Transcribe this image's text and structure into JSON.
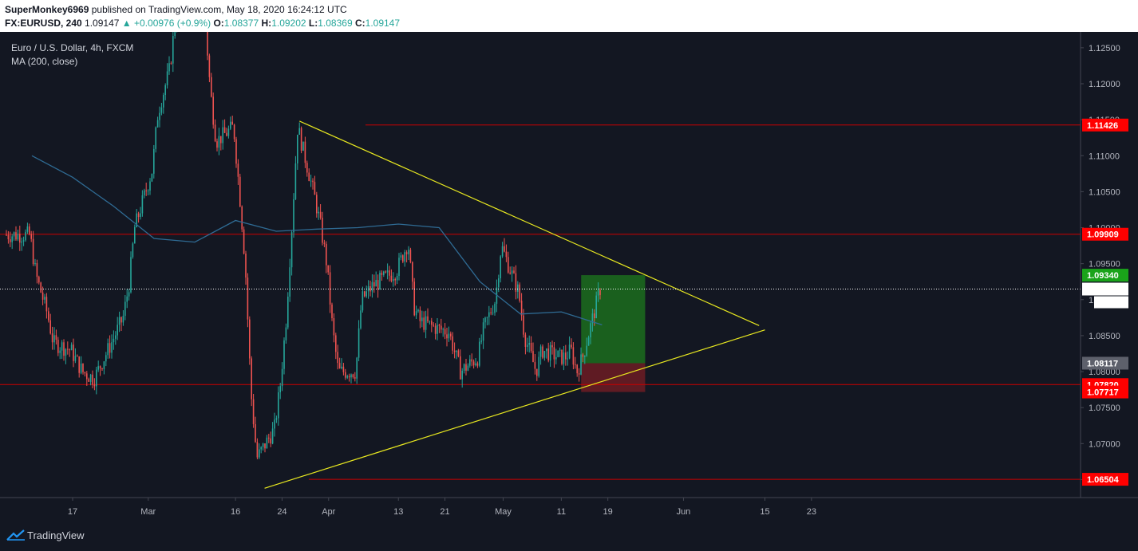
{
  "header": {
    "publisher": "SuperMonkey6969",
    "published_text": "published on TradingView.com, May 18, 2020 16:24:12 UTC",
    "symbol": "FX:EURUSD, 240",
    "price": "1.09147",
    "change": "+0.00976 (+0.9%)",
    "o_label": "O:",
    "o_value": "1.08377",
    "h_label": "H:",
    "h_value": "1.09202",
    "l_label": "L:",
    "l_value": "1.08369",
    "c_label": "C:",
    "c_value": "1.09147"
  },
  "legend": {
    "title": "Euro / U.S. Dollar, 4h, FXCM",
    "indicator": "MA (200, close)"
  },
  "footer": {
    "brand": "TradingView"
  },
  "colors": {
    "background": "#131722",
    "up": "#26a69a",
    "down": "#ef5350",
    "ma": "#2f6b94",
    "level_line": "#cc0000",
    "triangle": "#e8e820",
    "target_zone": "#1e7a1e",
    "stop_zone": "#7a1e24",
    "badge_red": "#ff0000",
    "badge_green": "#1aa31a"
  },
  "chart_data": {
    "type": "candlestick",
    "title": "Euro / U.S. Dollar, 4h, FXCM",
    "x_axis_labels": [
      "17",
      "Mar",
      "16",
      "24",
      "Apr",
      "13",
      "21",
      "May",
      "11",
      "19",
      "Jun",
      "15",
      "23"
    ],
    "y_axis_ticks": [
      "1.12500",
      "1.12000",
      "1.11500",
      "1.11000",
      "1.10500",
      "1.10000",
      "1.09500",
      "1.09000",
      "1.08500",
      "1.08000",
      "1.07500",
      "1.07000",
      "1.06500"
    ],
    "ylim": [
      1.0625,
      1.1272
    ],
    "horizontal_levels": [
      1.11426,
      1.09909,
      1.0782,
      1.06504
    ],
    "price_badges": [
      {
        "label": "1.11426",
        "value": 1.11426,
        "kind": "level"
      },
      {
        "label": "1.09909",
        "value": 1.09909,
        "kind": "level"
      },
      {
        "label": "1.09340",
        "value": 1.0934,
        "kind": "target"
      },
      {
        "label": "1.09147",
        "value": 1.09147,
        "kind": "last"
      },
      {
        "label": "1.08117",
        "value": 1.08117,
        "kind": "entry"
      },
      {
        "label": "1.07820",
        "value": 1.0782,
        "kind": "level"
      },
      {
        "label": "1.07717",
        "value": 1.07717,
        "kind": "stop"
      },
      {
        "label": "1.06504",
        "value": 1.06504,
        "kind": "level"
      }
    ],
    "countdown": "35:53",
    "last_price": 1.09147,
    "position": {
      "target": 1.0934,
      "entry": 1.08117,
      "stop": 1.07717
    },
    "triangle": {
      "upper": [
        [
          1.1148,
          1.0864
        ]
      ],
      "lower": [
        [
          1.0638,
          1.0858
        ]
      ]
    },
    "path_points": [
      {
        "d": "Feb 10",
        "v": 1.099
      },
      {
        "d": "Feb 11",
        "v": 1.0935
      },
      {
        "d": "Feb 13",
        "v": 1.088
      },
      {
        "d": "Feb 14",
        "v": 1.084
      },
      {
        "d": "Feb 17",
        "v": 1.083
      },
      {
        "d": "Feb 19",
        "v": 1.08
      },
      {
        "d": "Feb 21",
        "v": 1.079
      },
      {
        "d": "Feb 24",
        "v": 1.084
      },
      {
        "d": "Feb 26",
        "v": 1.0875
      },
      {
        "d": "Feb 27",
        "v": 1.092
      },
      {
        "d": "Feb 28",
        "v": 1.1
      },
      {
        "d": "Mar 2",
        "v": 1.108
      },
      {
        "d": "Mar 3",
        "v": 1.116
      },
      {
        "d": "Mar 5",
        "v": 1.122
      },
      {
        "d": "Mar 6",
        "v": 1.129
      },
      {
        "d": "Mar 9",
        "v": 1.14
      },
      {
        "d": "Mar 11",
        "v": 1.13
      },
      {
        "d": "Mar 12",
        "v": 1.119
      },
      {
        "d": "Mar 13",
        "v": 1.112
      },
      {
        "d": "Mar 16",
        "v": 1.114
      },
      {
        "d": "Mar 17",
        "v": 1.105
      },
      {
        "d": "Mar 18",
        "v": 1.095
      },
      {
        "d": "Mar 19",
        "v": 1.077
      },
      {
        "d": "Mar 20",
        "v": 1.068
      },
      {
        "d": "Mar 23",
        "v": 1.072
      },
      {
        "d": "Mar 24",
        "v": 1.078
      },
      {
        "d": "Mar 25",
        "v": 1.087
      },
      {
        "d": "Mar 26",
        "v": 1.1
      },
      {
        "d": "Mar 27",
        "v": 1.114
      },
      {
        "d": "Mar 30",
        "v": 1.104
      },
      {
        "d": "Mar 31",
        "v": 1.1
      },
      {
        "d": "Apr 1",
        "v": 1.095
      },
      {
        "d": "Apr 2",
        "v": 1.086
      },
      {
        "d": "Apr 3",
        "v": 1.08
      },
      {
        "d": "Apr 6",
        "v": 1.08
      },
      {
        "d": "Apr 7",
        "v": 1.09
      },
      {
        "d": "Apr 9",
        "v": 1.092
      },
      {
        "d": "Apr 13",
        "v": 1.094
      },
      {
        "d": "Apr 15",
        "v": 1.098
      },
      {
        "d": "Apr 16",
        "v": 1.089
      },
      {
        "d": "Apr 17",
        "v": 1.087
      },
      {
        "d": "Apr 20",
        "v": 1.086
      },
      {
        "d": "Apr 22",
        "v": 1.0855
      },
      {
        "d": "Apr 24",
        "v": 1.08
      },
      {
        "d": "Apr 27",
        "v": 1.082
      },
      {
        "d": "Apr 28",
        "v": 1.086
      },
      {
        "d": "Apr 30",
        "v": 1.09
      },
      {
        "d": "May 1",
        "v": 1.0975
      },
      {
        "d": "May 4",
        "v": 1.091
      },
      {
        "d": "May 5",
        "v": 1.085
      },
      {
        "d": "May 7",
        "v": 1.08
      },
      {
        "d": "May 8",
        "v": 1.083
      },
      {
        "d": "May 11",
        "v": 1.082
      },
      {
        "d": "May 12",
        "v": 1.082
      },
      {
        "d": "May 13",
        "v": 1.083
      },
      {
        "d": "May 14",
        "v": 1.08
      },
      {
        "d": "May 15",
        "v": 1.082
      },
      {
        "d": "May 18",
        "v": 1.0915
      }
    ],
    "ma_points": [
      {
        "d": "Feb 10",
        "v": 1.11
      },
      {
        "d": "Feb 17",
        "v": 1.107
      },
      {
        "d": "Feb 24",
        "v": 1.103
      },
      {
        "d": "Mar 2",
        "v": 1.0985
      },
      {
        "d": "Mar 9",
        "v": 1.098
      },
      {
        "d": "Mar 16",
        "v": 1.101
      },
      {
        "d": "Mar 23",
        "v": 1.0995
      },
      {
        "d": "Mar 30",
        "v": 1.0998
      },
      {
        "d": "Apr 6",
        "v": 1.1
      },
      {
        "d": "Apr 13",
        "v": 1.1005
      },
      {
        "d": "Apr 20",
        "v": 1.1
      },
      {
        "d": "Apr 27",
        "v": 1.0925
      },
      {
        "d": "May 4",
        "v": 1.088
      },
      {
        "d": "May 11",
        "v": 1.0883
      },
      {
        "d": "May 18",
        "v": 1.0865
      }
    ]
  }
}
